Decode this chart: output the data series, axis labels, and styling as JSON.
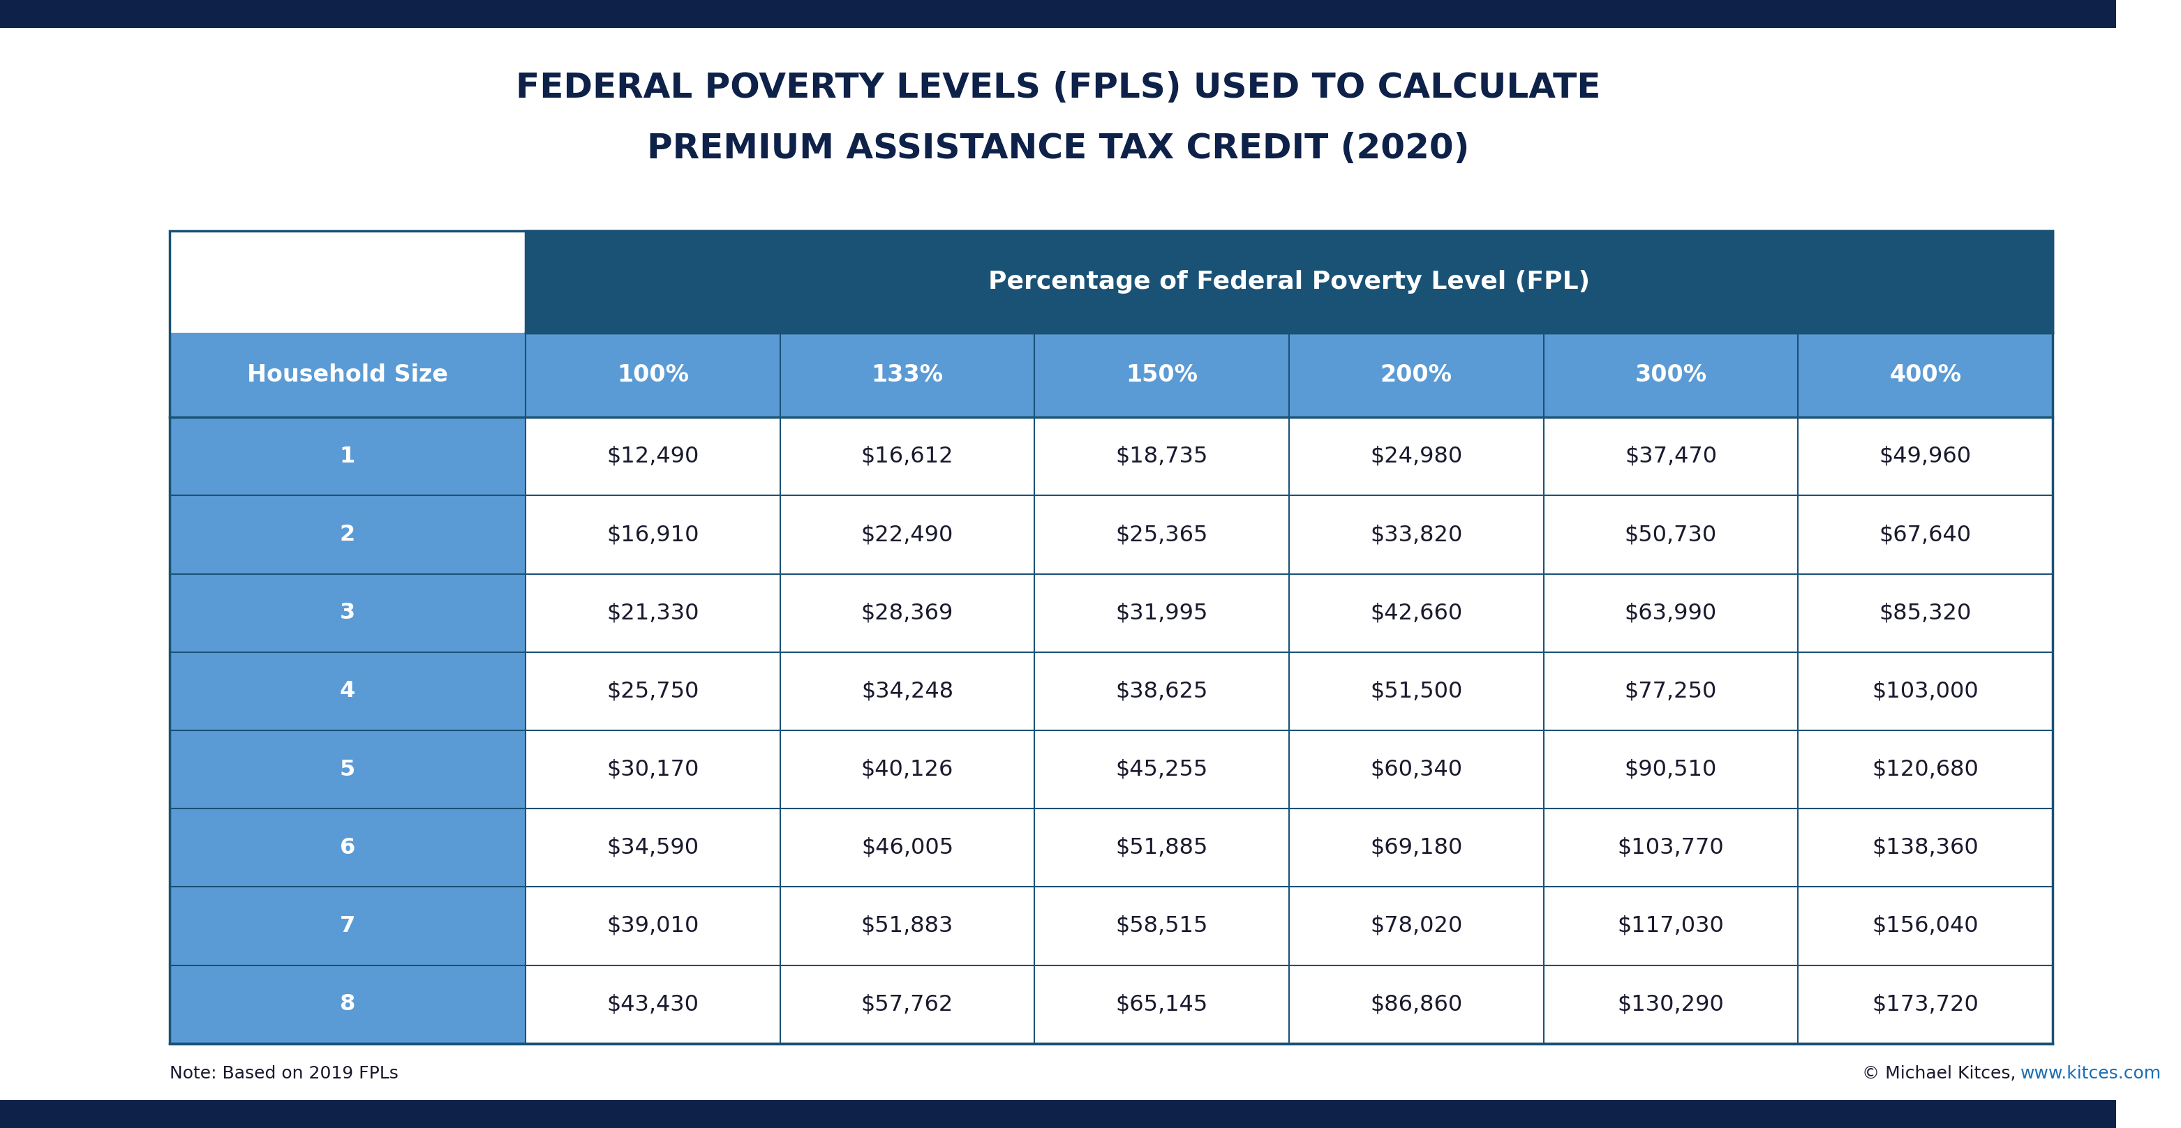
{
  "title_line1": "FEDERAL POVERTY LEVELS (FPLS) USED TO CALCULATE",
  "title_line2": "PREMIUM ASSISTANCE TAX CREDIT (2020)",
  "title_color": "#0d2149",
  "title_fontsize": 36,
  "bg_color": "#ffffff",
  "top_header": "Percentage of Federal Poverty Level (FPL)",
  "top_header_bg": "#1a5276",
  "top_header_text_color": "#ffffff",
  "col_headers": [
    "Household Size",
    "100%",
    "133%",
    "150%",
    "200%",
    "300%",
    "400%"
  ],
  "col_header_bg": "#5b9bd5",
  "col_header_text_color": "#ffffff",
  "row_header_bg": "#5b9bd5",
  "row_line_color": "#1a5276",
  "data": [
    [
      "1",
      "$12,490",
      "$16,612",
      "$18,735",
      "$24,980",
      "$37,470",
      "$49,960"
    ],
    [
      "2",
      "$16,910",
      "$22,490",
      "$25,365",
      "$33,820",
      "$50,730",
      "$67,640"
    ],
    [
      "3",
      "$21,330",
      "$28,369",
      "$31,995",
      "$42,660",
      "$63,990",
      "$85,320"
    ],
    [
      "4",
      "$25,750",
      "$34,248",
      "$38,625",
      "$51,500",
      "$77,250",
      "$103,000"
    ],
    [
      "5",
      "$30,170",
      "$40,126",
      "$45,255",
      "$60,340",
      "$90,510",
      "$120,680"
    ],
    [
      "6",
      "$34,590",
      "$46,005",
      "$51,885",
      "$69,180",
      "$103,770",
      "$138,360"
    ],
    [
      "7",
      "$39,010",
      "$51,883",
      "$58,515",
      "$78,020",
      "$117,030",
      "$156,040"
    ],
    [
      "8",
      "$43,430",
      "$57,762",
      "$65,145",
      "$86,860",
      "$130,290",
      "$173,720"
    ]
  ],
  "note_left": "Note: Based on 2019 FPLs",
  "note_right_prefix": "© Michael Kitces, ",
  "note_right_link": "www.kitces.com",
  "note_fontsize": 18,
  "footer_bg": "#0d2149"
}
